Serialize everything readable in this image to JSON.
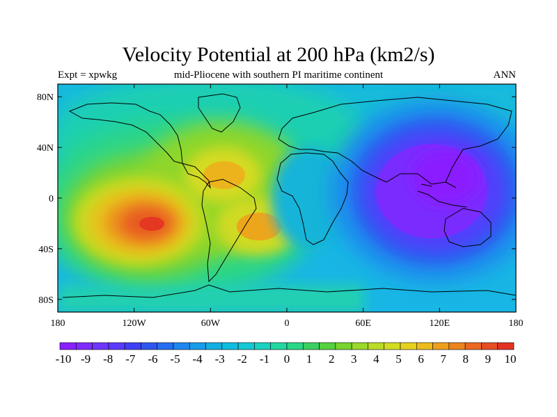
{
  "title": "Velocity Potential at 200 hPa (km2/s)",
  "subtitle_left": "Expt = xpwkg",
  "subtitle_center": "mid-Pliocene with southern PI maritime continent",
  "subtitle_right": "ANN",
  "map": {
    "projection": "cylindrical-equidistant",
    "lon_range": [
      -180,
      180
    ],
    "lat_range": [
      -90,
      90
    ],
    "x_ticks": [
      {
        "value": -180,
        "label": "180"
      },
      {
        "value": -120,
        "label": "120W"
      },
      {
        "value": -60,
        "label": "60W"
      },
      {
        "value": 0,
        "label": "0"
      },
      {
        "value": 60,
        "label": "60E"
      },
      {
        "value": 120,
        "label": "120E"
      },
      {
        "value": 180,
        "label": "180"
      }
    ],
    "y_ticks": [
      {
        "value": 80,
        "label": "80N"
      },
      {
        "value": 40,
        "label": "40N"
      },
      {
        "value": 0,
        "label": "0"
      },
      {
        "value": -40,
        "label": "40S"
      },
      {
        "value": -80,
        "label": "80S"
      }
    ],
    "field_centers": [
      {
        "name": "East Pacific maximum",
        "lon": -105,
        "lat": -22,
        "value": 9
      },
      {
        "name": "Caribbean maximum",
        "lon": -48,
        "lat": 17,
        "value": 6.5
      },
      {
        "name": "South Atlantic maximum",
        "lon": -25,
        "lat": -25,
        "value": 7
      },
      {
        "name": "West Pacific minimum",
        "lon": 120,
        "lat": 8,
        "value": -10
      },
      {
        "name": "Africa minimum",
        "lon": 15,
        "lat": 0,
        "value": -1.5
      }
    ]
  },
  "colorbar": {
    "labels": [
      "-10",
      "-9",
      "-8",
      "-7",
      "-6",
      "-5",
      "-4",
      "-3",
      "-2",
      "-1",
      "0",
      "1",
      "2",
      "3",
      "4",
      "5",
      "6",
      "7",
      "8",
      "9",
      "10"
    ],
    "colors": [
      "#8a1fff",
      "#7f2bff",
      "#6f36ff",
      "#5a3aff",
      "#3f3ff6",
      "#2f55f0",
      "#256ef0",
      "#1e86ee",
      "#169ce8",
      "#12aee2",
      "#0fbde0",
      "#16c8d4",
      "#1ad2c0",
      "#22d8a2",
      "#2ad786",
      "#3ad060",
      "#55d040",
      "#78d42e",
      "#9ad82a",
      "#badc26",
      "#d4dc22",
      "#e6d21e",
      "#ecbc1c",
      "#ee9f1c",
      "#ec8420",
      "#ea6822",
      "#e64e22",
      "#e43222"
    ]
  }
}
